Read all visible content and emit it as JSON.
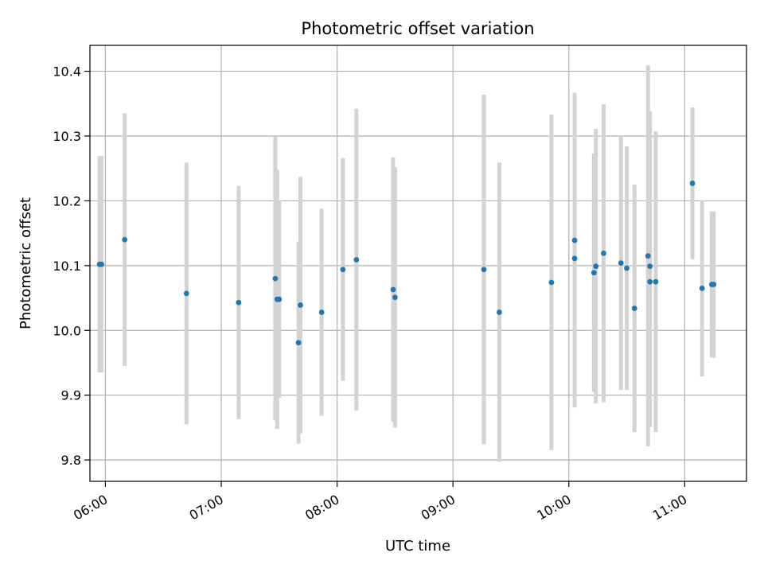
{
  "chart_data": {
    "type": "scatter",
    "title": "Photometric offset variation",
    "xlabel": "UTC time",
    "ylabel": "Photometric offset",
    "x_is_time": true,
    "xlim": [
      "05:52",
      "11:32"
    ],
    "ylim": [
      9.767,
      10.44
    ],
    "x_ticks": [
      "06:00",
      "07:00",
      "08:00",
      "09:00",
      "10:00",
      "11:00"
    ],
    "y_ticks": [
      "9.8",
      "9.9",
      "10.0",
      "10.1",
      "10.2",
      "10.3",
      "10.4"
    ],
    "grid": true,
    "colors": {
      "point": "#1f77b4",
      "errorbar": "#d3d3d3",
      "grid": "#b0b0b0"
    },
    "points": [
      {
        "x": "05:57",
        "y": 10.102,
        "yerr": 0.167
      },
      {
        "x": "05:58",
        "y": 10.102,
        "yerr": 0.167
      },
      {
        "x": "06:10",
        "y": 10.14,
        "yerr": 0.195
      },
      {
        "x": "06:42",
        "y": 10.057,
        "yerr": 0.202
      },
      {
        "x": "07:09",
        "y": 10.043,
        "yerr": 0.18
      },
      {
        "x": "07:28",
        "y": 10.08,
        "yerr": 0.219
      },
      {
        "x": "07:29",
        "y": 10.048,
        "yerr": 0.2
      },
      {
        "x": "07:30",
        "y": 10.048,
        "yerr": 0.152
      },
      {
        "x": "07:40",
        "y": 9.981,
        "yerr": 0.156
      },
      {
        "x": "07:41",
        "y": 10.039,
        "yerr": 0.198
      },
      {
        "x": "07:52",
        "y": 10.028,
        "yerr": 0.16
      },
      {
        "x": "08:03",
        "y": 10.094,
        "yerr": 0.172
      },
      {
        "x": "08:10",
        "y": 10.109,
        "yerr": 0.233
      },
      {
        "x": "08:29",
        "y": 10.063,
        "yerr": 0.204
      },
      {
        "x": "08:30",
        "y": 10.051,
        "yerr": 0.201
      },
      {
        "x": "09:16",
        "y": 10.094,
        "yerr": 0.27
      },
      {
        "x": "09:24",
        "y": 10.028,
        "yerr": 0.231
      },
      {
        "x": "09:51",
        "y": 10.074,
        "yerr": 0.259
      },
      {
        "x": "10:03",
        "y": 10.139,
        "yerr": 0.228
      },
      {
        "x": "10:03",
        "y": 10.111,
        "yerr": 0.23
      },
      {
        "x": "10:13",
        "y": 10.089,
        "yerr": 0.184
      },
      {
        "x": "10:14",
        "y": 10.099,
        "yerr": 0.212
      },
      {
        "x": "10:18",
        "y": 10.119,
        "yerr": 0.23
      },
      {
        "x": "10:27",
        "y": 10.104,
        "yerr": 0.196
      },
      {
        "x": "10:30",
        "y": 10.096,
        "yerr": 0.188
      },
      {
        "x": "10:34",
        "y": 10.034,
        "yerr": 0.191
      },
      {
        "x": "10:41",
        "y": 10.115,
        "yerr": 0.294
      },
      {
        "x": "10:42",
        "y": 10.099,
        "yerr": 0.239
      },
      {
        "x": "10:42",
        "y": 10.075,
        "yerr": 0.224
      },
      {
        "x": "10:45",
        "y": 10.075,
        "yerr": 0.232
      },
      {
        "x": "11:04",
        "y": 10.227,
        "yerr": 0.117
      },
      {
        "x": "11:09",
        "y": 10.065,
        "yerr": 0.136
      },
      {
        "x": "11:14",
        "y": 10.071,
        "yerr": 0.113
      },
      {
        "x": "11:15",
        "y": 10.071,
        "yerr": 0.113
      }
    ]
  }
}
